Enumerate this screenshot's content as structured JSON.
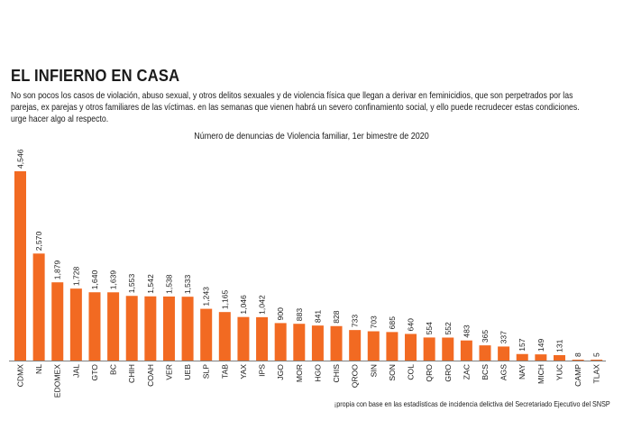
{
  "header": {
    "title": "EL INFIERNO EN CASA",
    "description_lines": [
      "No son pocos los casos de violación, abuso sexual, y otros delitos sexuales y de violencia física que llegan a derivar en feminicidios, que son perpetrados por las",
      "parejas, ex parejas y otros familiares de las víctimas. en las semanas que vienen habrá un severo confinamiento social, y ello puede recrudecer estas condiciones.",
      "urge hacer algo al respecto."
    ]
  },
  "source": "¡propia con base en las estadísticas de incidencia delictiva del Secretariado Ejecutivo del SNSP",
  "colors": {
    "bar": "#f26a22",
    "text": "#1a1a1a",
    "axis": "#555555"
  },
  "chart_data": {
    "type": "bar",
    "title": "Número de denuncias de Violencia familiar, 1er bimestre de 2020",
    "xlabel": "",
    "ylabel": "",
    "grid": false,
    "legend": "none",
    "ylim": [
      0,
      4546
    ],
    "categories": [
      "CDMX",
      "NL",
      "EDOMEX",
      "JAL",
      "GTO",
      "BC",
      "CHIH",
      "COAH",
      "VER",
      "UEB",
      "SLP",
      "TAB",
      "YAX",
      "IPS",
      "JGO",
      "MOR",
      "HGO",
      "CHIS",
      "QROO",
      "SIN",
      "SON",
      "COL",
      "QRO",
      "GRO",
      "ZAC",
      "BCS",
      "AGS",
      "NAY",
      "MICH",
      "YUC",
      "CAMP",
      "TLAX"
    ],
    "values": [
      4546,
      2570,
      1879,
      1728,
      1640,
      1639,
      1553,
      1542,
      1538,
      1533,
      1243,
      1165,
      1046,
      1042,
      900,
      883,
      841,
      828,
      733,
      703,
      685,
      640,
      554,
      552,
      483,
      365,
      337,
      157,
      149,
      131,
      8,
      5
    ],
    "value_labels": [
      "4,546",
      "2,570",
      "1,879",
      "1,728",
      "1,640",
      "1,639",
      "1,553",
      "1,542",
      "1,538",
      "1,533",
      "1,243",
      "1,165",
      "1,046",
      "1,042",
      "900",
      "883",
      "841",
      "828",
      "733",
      "703",
      "685",
      "640",
      "554",
      "552",
      "483",
      "365",
      "337",
      "157",
      "149",
      "131",
      "8",
      "5"
    ]
  }
}
